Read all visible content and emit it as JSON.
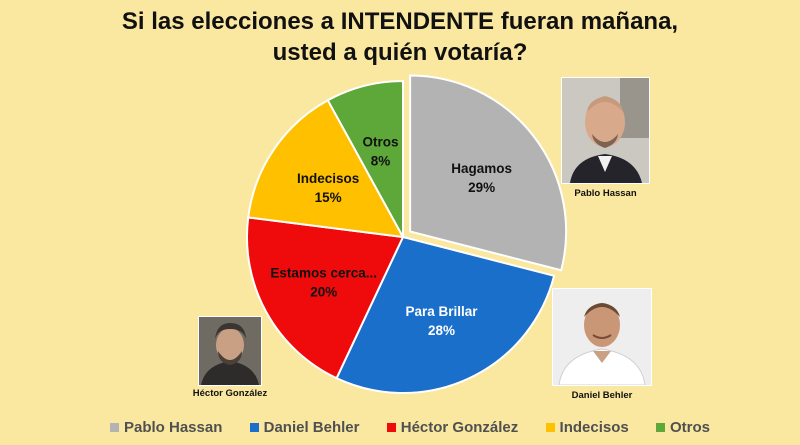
{
  "title": {
    "line1": "Si las elecciones a INTENDENTE fueran mañana,",
    "line2": "usted a quién votaría?"
  },
  "chart_data": {
    "type": "pie",
    "slices": [
      {
        "label": "Hagamos",
        "percent_text": "29%",
        "value": 29,
        "color": "#b3b3b3",
        "exploded": true
      },
      {
        "label": "Para Brillar",
        "percent_text": "28%",
        "value": 28,
        "color": "#1a6fcb"
      },
      {
        "label": "Estamos cerca...",
        "percent_text": "20%",
        "value": 20,
        "color": "#ef0b0b"
      },
      {
        "label": "Indecisos",
        "percent_text": "15%",
        "value": 15,
        "color": "#ffc000"
      },
      {
        "label": "Otros",
        "percent_text": "8%",
        "value": 8,
        "color": "#5ea83a"
      }
    ],
    "legend": [
      {
        "label": "Pablo Hassan",
        "color": "#b3b3b3"
      },
      {
        "label": "Daniel Behler",
        "color": "#1a6fcb"
      },
      {
        "label": "Héctor González",
        "color": "#ef0b0b"
      },
      {
        "label": "Indecisos",
        "color": "#ffc000"
      },
      {
        "label": "Otros",
        "color": "#5ea83a"
      }
    ],
    "legend_position": "bottom"
  },
  "photos": {
    "hassan": {
      "caption": "Pablo Hassan"
    },
    "behler": {
      "caption": "Daniel Behler"
    },
    "gonzalez": {
      "caption": "Héctor González"
    }
  }
}
